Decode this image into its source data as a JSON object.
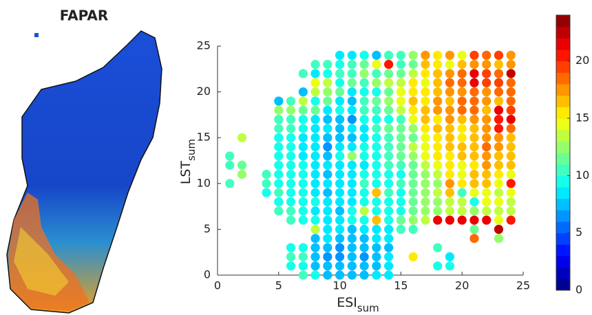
{
  "map": {
    "title": "FAPAR"
  },
  "chart_data": {
    "type": "scatter",
    "xlabel": {
      "text": "ESI",
      "sub": "sum"
    },
    "ylabel": {
      "text": "LST",
      "sub": "sum"
    },
    "x": [
      0,
      1,
      2,
      3,
      4,
      5,
      6,
      7,
      8,
      9,
      10,
      11,
      12,
      13,
      14,
      15,
      16,
      17,
      18,
      19,
      20,
      21,
      22,
      23,
      24
    ],
    "y": [
      0,
      1,
      2,
      3,
      4,
      5,
      6,
      7,
      8,
      9,
      10,
      11,
      12,
      13,
      14,
      15,
      16,
      17,
      18,
      19,
      20,
      21,
      22,
      23,
      24
    ],
    "values": [
      [
        null,
        null,
        null,
        null,
        null,
        null,
        null,
        10,
        9,
        7,
        7,
        7,
        7,
        8,
        8,
        null,
        null,
        null,
        null,
        null,
        null,
        null,
        null,
        null,
        null
      ],
      [
        null,
        null,
        null,
        null,
        null,
        null,
        9,
        9,
        7,
        7,
        7,
        7,
        7,
        7,
        8,
        null,
        null,
        null,
        9,
        9,
        null,
        null,
        null,
        null,
        null
      ],
      [
        null,
        null,
        null,
        null,
        null,
        null,
        10,
        10,
        7,
        6,
        6,
        7,
        6,
        7,
        8,
        null,
        15,
        null,
        null,
        8,
        null,
        null,
        null,
        null,
        null
      ],
      [
        null,
        null,
        null,
        null,
        null,
        null,
        9,
        9,
        7,
        7,
        6,
        7,
        7,
        7,
        7,
        null,
        null,
        null,
        10,
        null,
        null,
        null,
        null,
        null,
        null
      ],
      [
        null,
        null,
        null,
        null,
        null,
        null,
        null,
        null,
        7,
        8,
        7,
        7,
        7,
        8,
        8,
        null,
        null,
        null,
        null,
        null,
        null,
        18,
        null,
        12,
        null
      ],
      [
        null,
        null,
        null,
        null,
        null,
        null,
        null,
        null,
        13,
        8,
        8,
        7,
        8,
        8,
        8,
        10,
        10,
        null,
        null,
        null,
        null,
        11,
        null,
        22,
        null
      ],
      [
        null,
        null,
        null,
        null,
        null,
        null,
        10,
        9,
        9,
        8,
        8,
        9,
        9,
        16,
        9,
        11,
        12,
        13,
        21,
        21,
        21,
        21,
        21,
        14,
        20
      ],
      [
        null,
        null,
        null,
        null,
        null,
        10,
        10,
        9,
        8,
        8,
        7,
        9,
        13,
        9,
        9,
        9,
        11,
        12,
        12,
        13,
        13,
        12,
        13,
        13,
        13
      ],
      [
        null,
        null,
        null,
        null,
        null,
        9,
        9,
        9,
        9,
        8,
        8,
        8,
        9,
        9,
        9,
        9,
        11,
        12,
        12,
        13,
        13,
        9,
        14,
        14,
        13
      ],
      [
        null,
        null,
        null,
        null,
        9,
        10,
        9,
        9,
        8,
        7,
        8,
        8,
        9,
        16,
        10,
        9,
        11,
        12,
        13,
        16,
        10,
        14,
        14,
        13,
        14
      ],
      [
        null,
        10,
        null,
        null,
        10,
        9,
        9,
        9,
        8,
        8,
        8,
        8,
        10,
        9,
        9,
        10,
        11,
        12,
        12,
        17,
        15,
        16,
        16,
        14,
        20
      ],
      [
        null,
        null,
        12,
        null,
        10,
        9,
        9,
        9,
        8,
        7,
        8,
        8,
        9,
        9,
        9,
        9,
        11,
        12,
        13,
        15,
        14,
        16,
        16,
        15,
        14
      ],
      [
        null,
        10,
        11,
        null,
        null,
        9,
        9,
        9,
        8,
        8,
        8,
        8,
        8,
        9,
        10,
        10,
        11,
        13,
        14,
        15,
        14,
        15,
        17,
        16,
        16
      ],
      [
        null,
        10,
        null,
        null,
        null,
        9,
        9,
        8,
        8,
        7,
        9,
        12,
        9,
        9,
        10,
        11,
        12,
        14,
        15,
        15,
        16,
        16,
        17,
        16,
        16
      ],
      [
        null,
        null,
        null,
        null,
        null,
        9,
        9,
        8,
        8,
        6,
        8,
        8,
        9,
        9,
        10,
        11,
        13,
        14,
        15,
        16,
        16,
        16,
        18,
        17,
        16
      ],
      [
        null,
        null,
        13,
        null,
        null,
        9,
        9,
        8,
        8,
        7,
        7,
        7,
        8,
        9,
        10,
        11,
        11,
        14,
        15,
        16,
        15,
        16,
        17,
        17,
        16
      ],
      [
        null,
        null,
        null,
        null,
        null,
        10,
        10,
        9,
        8,
        8,
        7,
        8,
        8,
        10,
        11,
        11,
        12,
        15,
        16,
        16,
        15,
        16,
        17,
        20,
        18
      ],
      [
        null,
        null,
        null,
        null,
        null,
        10,
        10,
        9,
        8,
        7,
        7,
        6,
        9,
        9,
        9,
        10,
        14,
        16,
        15,
        17,
        16,
        17,
        17,
        20,
        21
      ],
      [
        null,
        null,
        null,
        null,
        null,
        12,
        12,
        11,
        11,
        8,
        9,
        8,
        10,
        10,
        11,
        13,
        15,
        16,
        17,
        17,
        18,
        18,
        16,
        21,
        19
      ],
      [
        null,
        null,
        null,
        null,
        null,
        7,
        10,
        13,
        9,
        11,
        8,
        7,
        10,
        11,
        12,
        14,
        16,
        15,
        17,
        16,
        18,
        18,
        17,
        16,
        18
      ],
      [
        null,
        null,
        null,
        null,
        null,
        null,
        null,
        7,
        13,
        12,
        11,
        8,
        9,
        9,
        11,
        14,
        15,
        15,
        16,
        17,
        17,
        18,
        17,
        18,
        18
      ],
      [
        null,
        null,
        null,
        null,
        null,
        null,
        null,
        null,
        14,
        13,
        9,
        11,
        10,
        12,
        13,
        13,
        15,
        14,
        16,
        18,
        18,
        21,
        19,
        19,
        18
      ],
      [
        null,
        null,
        null,
        null,
        null,
        null,
        null,
        10,
        8,
        9,
        10,
        10,
        12,
        10,
        11,
        11,
        13,
        15,
        16,
        17,
        18,
        21,
        19,
        18,
        22
      ],
      [
        null,
        null,
        null,
        null,
        null,
        null,
        null,
        null,
        10,
        10,
        9,
        10,
        11,
        14,
        20,
        10,
        11,
        16,
        15,
        14,
        16,
        17,
        17,
        16,
        17
      ],
      [
        null,
        null,
        null,
        null,
        null,
        null,
        null,
        null,
        null,
        null,
        8,
        8,
        9,
        7,
        10,
        10,
        12,
        17,
        15,
        17,
        14,
        19,
        18,
        19,
        17
      ]
    ],
    "xlim": [
      0,
      25
    ],
    "ylim": [
      0,
      25
    ],
    "xticks": [
      0,
      5,
      10,
      15,
      20,
      25
    ],
    "yticks": [
      0,
      5,
      10,
      15,
      20,
      25
    ],
    "colormap": "jet",
    "clim": [
      0,
      24
    ],
    "cticks": [
      0,
      5,
      10,
      15,
      20
    ]
  }
}
